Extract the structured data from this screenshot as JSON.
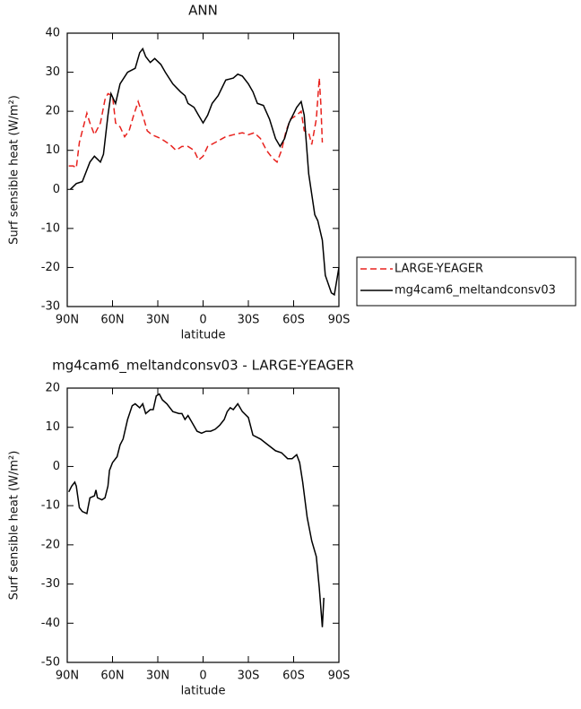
{
  "chart_data": [
    {
      "type": "line",
      "title": "ANN",
      "x_label": "latitude",
      "y_label": "Surf sensible heat (W/m²)",
      "xlim": [
        90,
        -90
      ],
      "ylim": [
        -30,
        40
      ],
      "xticks": [
        {
          "value": 90,
          "label": "90N"
        },
        {
          "value": 60,
          "label": "60N"
        },
        {
          "value": 30,
          "label": "30N"
        },
        0,
        {
          "value": -30,
          "label": "30S"
        },
        {
          "value": -60,
          "label": "60S"
        },
        {
          "value": -90,
          "label": "90S"
        }
      ],
      "yticks": [
        -30,
        -20,
        -10,
        0,
        10,
        20,
        30,
        40
      ],
      "legend": "right",
      "series": [
        {
          "name": "LARGE-YEAGER",
          "color": "#e8221e",
          "dashed": true,
          "x": [
            89,
            86,
            84,
            82,
            78,
            77,
            75,
            72,
            68,
            65,
            63,
            60,
            58,
            55,
            52,
            49,
            46,
            43,
            40,
            37,
            34,
            28,
            22,
            18,
            14,
            10,
            6,
            3,
            0,
            -3,
            -8,
            -15,
            -20,
            -26,
            -30,
            -34,
            -38,
            -42,
            -46,
            -49,
            -52,
            -55,
            -58,
            -62,
            -65,
            -67,
            -70,
            -72,
            -75,
            -77,
            -78,
            -79
          ],
          "values": [
            6,
            6,
            5.5,
            12,
            18,
            19.5,
            17,
            14,
            17,
            23,
            24.5,
            24,
            17,
            16,
            13.5,
            15,
            19,
            22.5,
            19,
            15,
            14,
            13,
            11.5,
            10,
            11,
            11,
            10,
            7.5,
            8.5,
            11,
            12,
            13.5,
            14,
            14.5,
            14,
            14.5,
            13,
            10,
            8,
            7,
            10,
            15,
            18,
            19,
            20,
            15,
            14.5,
            11.5,
            18,
            28.5,
            22,
            12
          ]
        },
        {
          "name": "mg4cam6_meltandconsv03",
          "color": "#000000",
          "dashed": false,
          "x": [
            88,
            84,
            80,
            75,
            72,
            68,
            66,
            63,
            61,
            58,
            55,
            50,
            45,
            42,
            40,
            38,
            35,
            32,
            28,
            25,
            20,
            15,
            12,
            10,
            6,
            3,
            0,
            -3,
            -6,
            -10,
            -15,
            -20,
            -23,
            -26,
            -30,
            -33,
            -36,
            -40,
            -44,
            -48,
            -51,
            -54,
            -57,
            -62,
            -65,
            -67,
            -70,
            -74,
            -76,
            -79,
            -81,
            -85,
            -87,
            -90
          ],
          "values": [
            0,
            1.5,
            2,
            7,
            8.5,
            7,
            9,
            19,
            24.5,
            22,
            27,
            30,
            31,
            35,
            36,
            34,
            32.5,
            33.5,
            32,
            30,
            27,
            25,
            24,
            22,
            21,
            19,
            17,
            19,
            22,
            24,
            28,
            28.5,
            29.5,
            29,
            27,
            25,
            22,
            21.5,
            18,
            13,
            11,
            13,
            17,
            21,
            22.5,
            19,
            4,
            -6.5,
            -8,
            -13,
            -22,
            -26.5,
            -27,
            -20
          ]
        }
      ]
    },
    {
      "type": "line",
      "title": "mg4cam6_meltandconsv03 - LARGE-YEAGER",
      "x_label": "latitude",
      "y_label": "Surf sensible heat (W/m²)",
      "xlim": [
        90,
        -90
      ],
      "ylim": [
        -50,
        20
      ],
      "xticks": [
        {
          "value": 90,
          "label": "90N"
        },
        {
          "value": 60,
          "label": "60N"
        },
        {
          "value": 30,
          "label": "30N"
        },
        0,
        {
          "value": -30,
          "label": "30S"
        },
        {
          "value": -60,
          "label": "60S"
        },
        {
          "value": -90,
          "label": "90S"
        }
      ],
      "yticks": [
        -50,
        -40,
        -30,
        -20,
        -10,
        0,
        10,
        20
      ],
      "series": [
        {
          "color": "#000000",
          "dashed": false,
          "x": [
            89,
            87,
            85,
            84,
            82,
            80,
            77,
            75,
            72,
            71,
            70,
            67,
            65,
            63,
            62,
            60,
            57,
            55,
            53,
            50,
            47,
            45,
            42,
            40,
            38,
            35,
            33,
            31,
            29,
            27,
            24,
            20,
            16,
            14,
            12,
            10,
            7,
            4,
            1,
            -2,
            -5,
            -8,
            -11,
            -14,
            -16,
            -18,
            -20,
            -23,
            -26,
            -30,
            -33,
            -38,
            -43,
            -48,
            -52,
            -56,
            -59,
            -62,
            -64,
            -66,
            -69,
            -72,
            -75,
            -77,
            -79,
            -80
          ],
          "values": [
            -6.5,
            -5,
            -4,
            -5,
            -10.5,
            -11.5,
            -12,
            -8,
            -7.5,
            -6,
            -8,
            -8.5,
            -8,
            -5,
            -1,
            1,
            2.5,
            5.5,
            7,
            12,
            15.5,
            16,
            15,
            16,
            13.5,
            14.5,
            14.5,
            18,
            18.5,
            17,
            16,
            14,
            13.5,
            13.5,
            12,
            13,
            11,
            9,
            8.5,
            9,
            9,
            9.5,
            10.5,
            12,
            14,
            15,
            14.5,
            16,
            14,
            12.5,
            8,
            7,
            5.5,
            4,
            3.5,
            2,
            2,
            3,
            1,
            -4,
            -13,
            -19,
            -23,
            -31,
            -41,
            -33.5
          ]
        }
      ]
    }
  ]
}
